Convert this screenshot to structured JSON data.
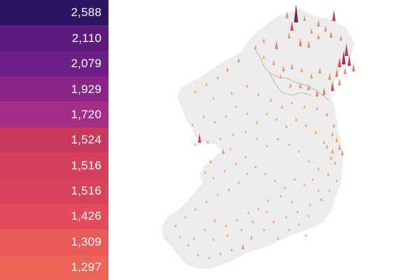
{
  "legend": {
    "values": [
      "2,588",
      "2,110",
      "2,079",
      "1,929",
      "1,720",
      "1,524",
      "1,516",
      "1,516",
      "1,426",
      "1,309",
      "1,297"
    ],
    "colors": [
      "#2c1460",
      "#5e1a7c",
      "#6c1f86",
      "#8a2688",
      "#a52d85",
      "#c9395f",
      "#d63f5e",
      "#d8425b",
      "#e34b5b",
      "#e95a58",
      "#ec6457"
    ]
  },
  "map": {
    "land_color": "#ececec",
    "border_color": "#b8b8b8",
    "spike_low_color": "#f4a45e",
    "spike_high_color": "#3a135e"
  }
}
